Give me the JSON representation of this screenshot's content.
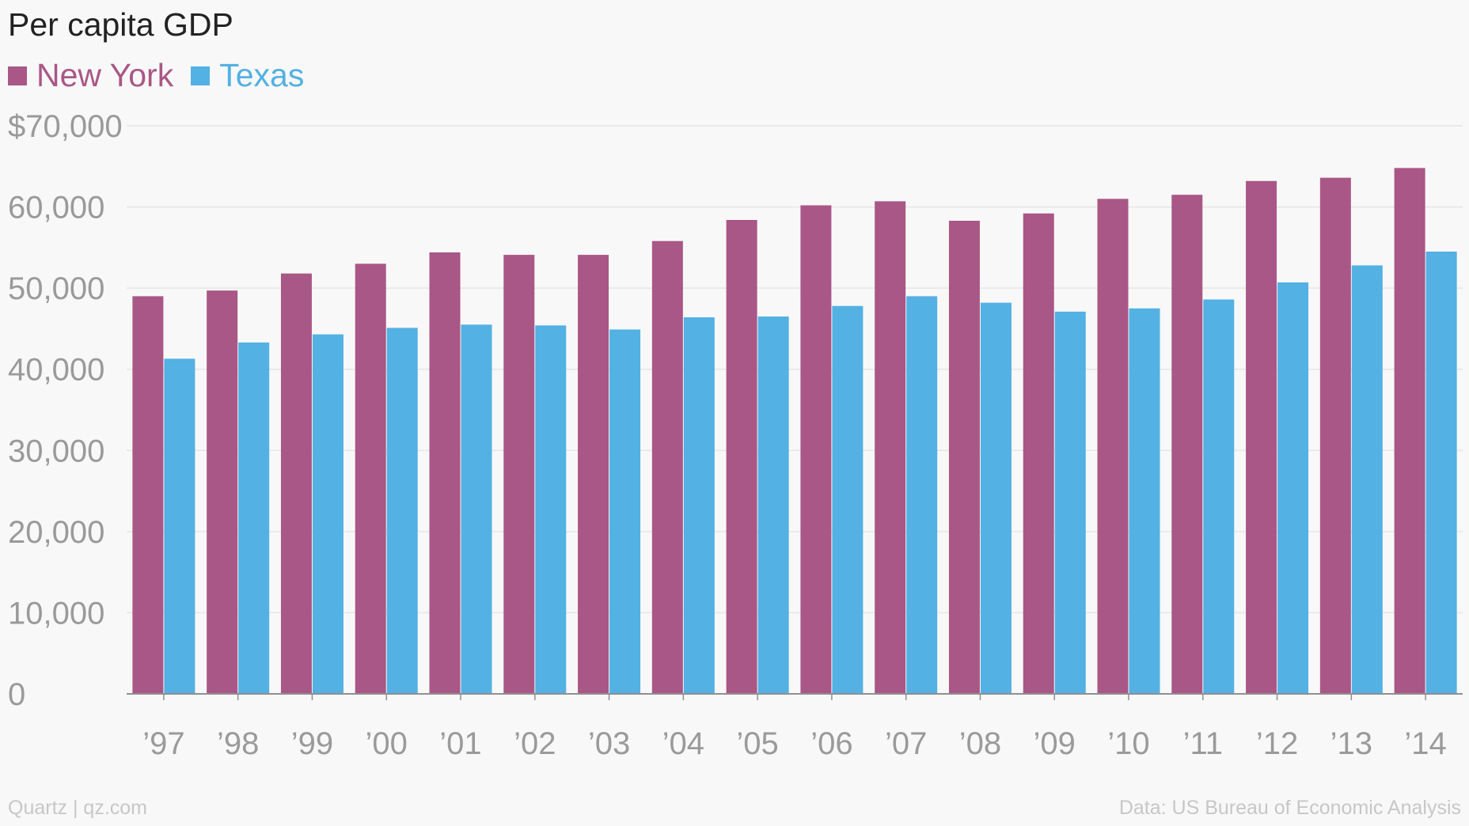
{
  "chart_data": {
    "type": "bar",
    "title": "Per capita GDP",
    "categories": [
      "’97",
      "’98",
      "’99",
      "’00",
      "’01",
      "’02",
      "’03",
      "’04",
      "’05",
      "’06",
      "’07",
      "’08",
      "’09",
      "’10",
      "’11",
      "’12",
      "’13",
      "’14"
    ],
    "series": [
      {
        "name": "New York",
        "color": "#a95786",
        "values": [
          49000,
          49700,
          51800,
          53000,
          54400,
          54100,
          54100,
          55800,
          58400,
          60200,
          60700,
          58300,
          59200,
          61000,
          61500,
          63200,
          63600,
          64800
        ]
      },
      {
        "name": "Texas",
        "color": "#53b1e3",
        "values": [
          41300,
          43300,
          44300,
          45100,
          45500,
          45400,
          44900,
          46400,
          46500,
          47800,
          49000,
          48200,
          47100,
          47500,
          48600,
          50700,
          52800,
          54500
        ]
      }
    ],
    "ylim": [
      0,
      70000
    ],
    "yticks": [
      0,
      10000,
      20000,
      30000,
      40000,
      50000,
      60000,
      70000
    ],
    "ytick_labels": [
      "0",
      "10,000",
      "20,000",
      "30,000",
      "40,000",
      "50,000",
      "60,000",
      "$70,000"
    ],
    "grid": true,
    "legend_position": "top-left"
  },
  "footer": {
    "credit": "Quartz | qz.com",
    "source": "Data: US Bureau of Economic Analysis"
  },
  "colors": {
    "background": "#f8f8f8",
    "grid": "#e6e6e6",
    "axis": "#8f8f8f",
    "tick_text": "#9a9a9a"
  }
}
